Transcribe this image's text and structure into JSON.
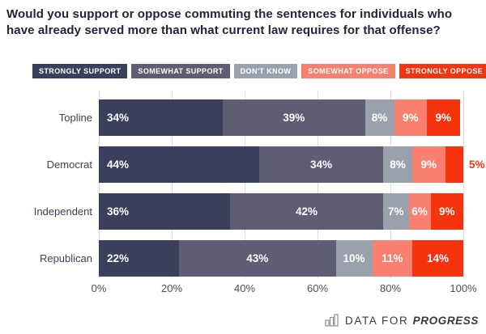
{
  "title": "Would you support or oppose commuting the sentences for individuals who have already served more than what current law requires for that offense?",
  "legend": {
    "items": [
      {
        "label": "STRONGLY SUPPORT",
        "color": "#3a3f5c"
      },
      {
        "label": "SOMEWHAT SUPPORT",
        "color": "#5e5d73"
      },
      {
        "label": "DON'T KNOW",
        "color": "#99a1ad"
      },
      {
        "label": "SOMEWHAT OPPOSE",
        "color": "#f9806e"
      },
      {
        "label": "STRONGLY OPPOSE",
        "color": "#f5330f"
      }
    ]
  },
  "chart_data": {
    "type": "bar",
    "orientation": "horizontal",
    "stacked": true,
    "title": "Would you support or oppose commuting the sentences for individuals who have already served more than what current law requires for that offense?",
    "categories": [
      "Topline",
      "Democrat",
      "Independent",
      "Republican"
    ],
    "series": [
      {
        "name": "Strongly support",
        "color": "#3a3f5c",
        "values": [
          34,
          44,
          36,
          22
        ]
      },
      {
        "name": "Somewhat support",
        "color": "#5e5d73",
        "values": [
          39,
          34,
          42,
          43
        ]
      },
      {
        "name": "Don't know",
        "color": "#99a1ad",
        "values": [
          8,
          8,
          7,
          10
        ]
      },
      {
        "name": "Somewhat oppose",
        "color": "#f9806e",
        "values": [
          9,
          9,
          6,
          11
        ]
      },
      {
        "name": "Strongly oppose",
        "color": "#f5330f",
        "values": [
          9,
          5,
          9,
          14
        ]
      }
    ],
    "value_suffix": "%",
    "xlim": [
      0,
      100
    ],
    "x_ticks": [
      {
        "value": 0,
        "label": "0%"
      },
      {
        "value": 20,
        "label": "20%"
      },
      {
        "value": 40,
        "label": "40%"
      },
      {
        "value": 60,
        "label": "60%"
      },
      {
        "value": 80,
        "label": "80%"
      },
      {
        "value": 100,
        "label": "100%"
      }
    ],
    "grid": true,
    "legend_position": "top",
    "outside_label_below": 6,
    "outside_label_color": "#f5330f"
  },
  "footer": {
    "brand_prefix": "DATA FOR",
    "brand_name": "PROGRESS"
  }
}
